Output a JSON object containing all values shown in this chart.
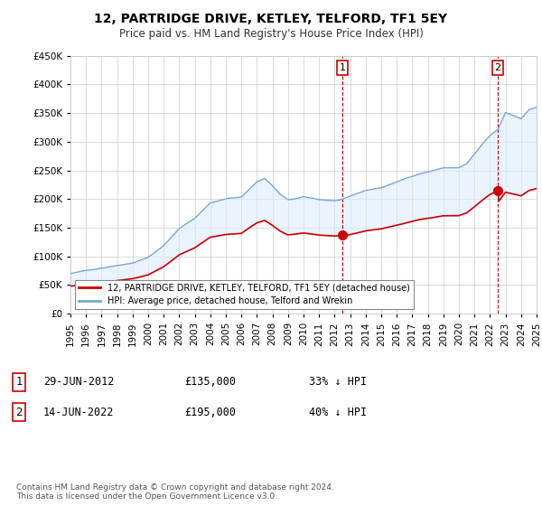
{
  "title": "12, PARTRIDGE DRIVE, KETLEY, TELFORD, TF1 5EY",
  "subtitle": "Price paid vs. HM Land Registry's House Price Index (HPI)",
  "ylim": [
    0,
    450000
  ],
  "yticks": [
    0,
    50000,
    100000,
    150000,
    200000,
    250000,
    300000,
    350000,
    400000,
    450000
  ],
  "hpi_color": "#7ba7d4",
  "hpi_fill_color": "#ddeeff",
  "price_color": "#cc0000",
  "vline_color": "#cc0000",
  "background_color": "#ffffff",
  "grid_color": "#cccccc",
  "legend_label_price": "12, PARTRIDGE DRIVE, KETLEY, TELFORD, TF1 5EY (detached house)",
  "legend_label_hpi": "HPI: Average price, detached house, Telford and Wrekin",
  "annotation1_date": "29-JUN-2012",
  "annotation1_price": "£135,000",
  "annotation1_hpi": "33% ↓ HPI",
  "annotation1_year": 2012.5,
  "annotation1_value": 135000,
  "annotation2_date": "14-JUN-2022",
  "annotation2_price": "£195,000",
  "annotation2_hpi": "40% ↓ HPI",
  "annotation2_year": 2022.5,
  "annotation2_value": 195000,
  "footer": "Contains HM Land Registry data © Crown copyright and database right 2024.\nThis data is licensed under the Open Government Licence v3.0.",
  "xstart": 1995,
  "xend": 2025,
  "hpi_key_t": [
    1995,
    1996,
    1997,
    1998,
    1999,
    2000,
    2001,
    2002,
    2003,
    2004,
    2005,
    2006,
    2007,
    2007.5,
    2008,
    2008.5,
    2009,
    2009.5,
    2010,
    2011,
    2012,
    2012.5,
    2013,
    2014,
    2015,
    2016,
    2017,
    2017.5,
    2018,
    2019,
    2020,
    2020.5,
    2021,
    2021.5,
    2022,
    2022.5,
    2023,
    2023.5,
    2024,
    2024.5,
    2025
  ],
  "hpi_key_v": [
    70000,
    75000,
    80000,
    85000,
    90000,
    100000,
    120000,
    150000,
    168000,
    195000,
    202000,
    205000,
    232000,
    238000,
    225000,
    210000,
    200000,
    202000,
    205000,
    200000,
    198000,
    200000,
    205000,
    215000,
    220000,
    230000,
    240000,
    245000,
    248000,
    255000,
    255000,
    262000,
    278000,
    295000,
    310000,
    320000,
    350000,
    345000,
    340000,
    355000,
    360000
  ],
  "price_key_t": [
    1995,
    1996,
    1997,
    1998,
    1999,
    2000,
    2001,
    2002,
    2003,
    2004,
    2005,
    2006,
    2007,
    2007.5,
    2008,
    2008.5,
    2009,
    2009.5,
    2010,
    2011,
    2012,
    2012.5,
    2013,
    2014,
    2015,
    2016,
    2017,
    2017.5,
    2018,
    2019,
    2020,
    2020.5,
    2021,
    2021.5,
    2022,
    2022.5,
    2023,
    2023.5,
    2024,
    2024.5,
    2025
  ],
  "price_key_v": [
    48000,
    50000,
    52000,
    54000,
    56000,
    60000,
    70000,
    82000,
    92000,
    108000,
    114000,
    116000,
    135000,
    155000,
    147000,
    135000,
    128000,
    128000,
    130000,
    127000,
    127000,
    135000,
    138000,
    144000,
    147000,
    155000,
    162000,
    167000,
    170000,
    173000,
    175000,
    180000,
    192000,
    210000,
    215000,
    195000,
    208000,
    205000,
    203000,
    208000,
    210000
  ]
}
